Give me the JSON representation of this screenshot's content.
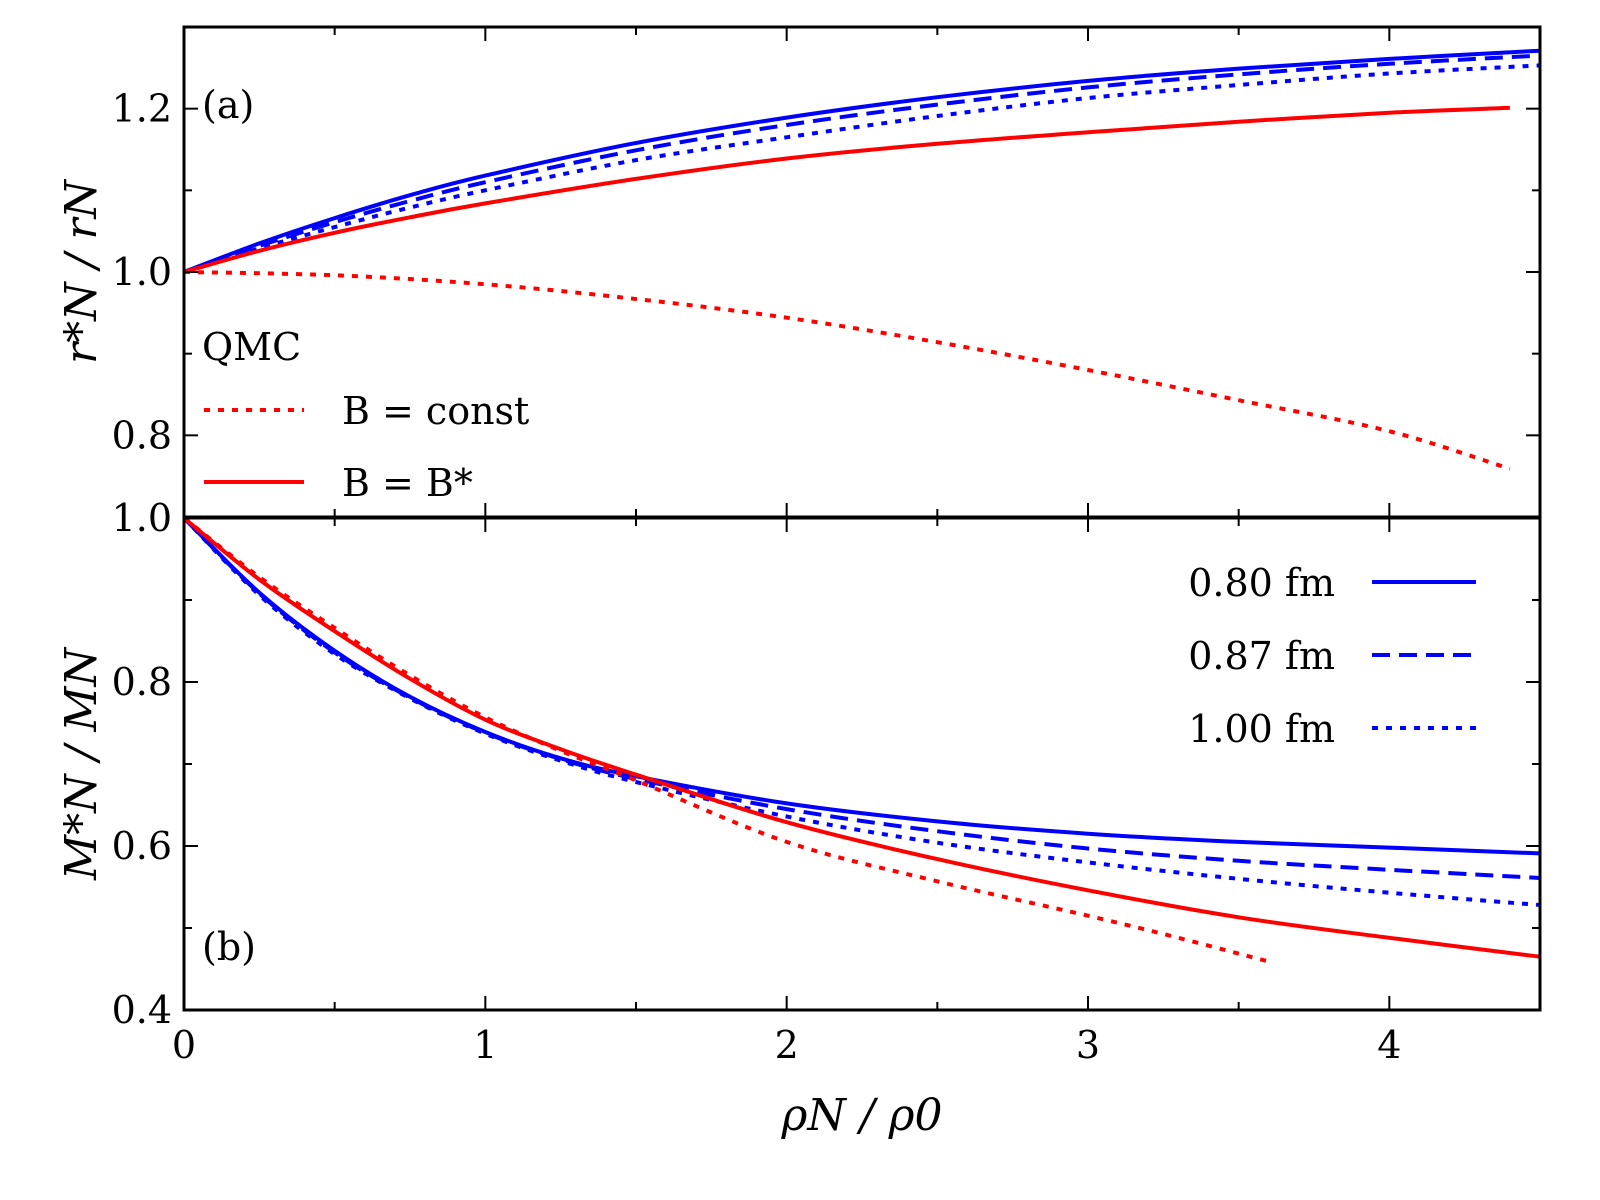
{
  "chart_data": [
    {
      "type": "line",
      "panel_label": "(a)",
      "xlabel": "ρN / ρ0",
      "ylabel": "r*N / rN",
      "xlim": [
        0,
        4.5
      ],
      "ylim": [
        0.7,
        1.3
      ],
      "yticks": [
        0.8,
        1.0,
        1.2
      ],
      "ytick_labels": [
        "0.8",
        "1.0",
        "1.2"
      ],
      "legend_title": "QMC",
      "legend": [
        {
          "label": "B = const",
          "color": "#ff0000",
          "style": "dotted"
        },
        {
          "label": "B = B*",
          "color": "#ff0000",
          "style": "solid"
        }
      ],
      "legend_position": "bottom-left",
      "series": [
        {
          "name": "0.80 fm",
          "color": "#0000ff",
          "style": "solid",
          "x": [
            0,
            0.25,
            0.5,
            0.75,
            1,
            1.5,
            2,
            2.5,
            3,
            3.5,
            4,
            4.5
          ],
          "values": [
            1.0,
            1.035,
            1.066,
            1.094,
            1.118,
            1.158,
            1.189,
            1.214,
            1.234,
            1.249,
            1.261,
            1.271
          ]
        },
        {
          "name": "0.87 fm",
          "color": "#0000ff",
          "style": "dashed",
          "x": [
            0,
            0.25,
            0.5,
            0.75,
            1,
            1.5,
            2,
            2.5,
            3,
            3.5,
            4,
            4.5
          ],
          "values": [
            1.0,
            1.032,
            1.061,
            1.087,
            1.11,
            1.149,
            1.18,
            1.205,
            1.226,
            1.242,
            1.255,
            1.265
          ]
        },
        {
          "name": "1.00 fm",
          "color": "#0000ff",
          "style": "dotted",
          "x": [
            0,
            0.25,
            0.5,
            0.75,
            1,
            1.5,
            2,
            2.5,
            3,
            3.5,
            4,
            4.5
          ],
          "values": [
            1.0,
            1.029,
            1.055,
            1.079,
            1.1,
            1.137,
            1.165,
            1.191,
            1.213,
            1.229,
            1.243,
            1.253
          ]
        },
        {
          "name": "B = B*",
          "color": "#ff0000",
          "style": "solid",
          "x": [
            0,
            0.25,
            0.5,
            0.75,
            1,
            1.5,
            2,
            2.5,
            3,
            3.5,
            4,
            4.4
          ],
          "values": [
            1.0,
            1.026,
            1.048,
            1.067,
            1.084,
            1.114,
            1.139,
            1.157,
            1.171,
            1.184,
            1.195,
            1.201
          ]
        },
        {
          "name": "B = const",
          "color": "#ff0000",
          "style": "dotted",
          "x": [
            0,
            0.5,
            1,
            1.5,
            2,
            2.5,
            3,
            3.5,
            4,
            4.4
          ],
          "values": [
            1.0,
            0.996,
            0.985,
            0.967,
            0.944,
            0.914,
            0.88,
            0.843,
            0.805,
            0.759
          ]
        }
      ]
    },
    {
      "type": "line",
      "panel_label": "(b)",
      "xlabel": "ρN / ρ0",
      "ylabel": "M*N / MN",
      "xlim": [
        0,
        4.5
      ],
      "ylim": [
        0.4,
        1.0
      ],
      "xticks": [
        0,
        1,
        2,
        3,
        4
      ],
      "xtick_labels": [
        "0",
        "1",
        "2",
        "3",
        "4"
      ],
      "yticks": [
        0.4,
        0.6,
        0.8,
        1.0
      ],
      "ytick_labels": [
        "0.4",
        "0.6",
        "0.8",
        "1.0"
      ],
      "legend": [
        {
          "label": "0.80 fm",
          "color": "#0000ff",
          "style": "solid"
        },
        {
          "label": "0.87 fm",
          "color": "#0000ff",
          "style": "dashed"
        },
        {
          "label": "1.00 fm",
          "color": "#0000ff",
          "style": "dotted"
        }
      ],
      "legend_position": "top-right",
      "series": [
        {
          "name": "0.80 fm",
          "color": "#0000ff",
          "style": "solid",
          "x": [
            0,
            0.25,
            0.5,
            0.75,
            1,
            1.25,
            1.5,
            2,
            2.5,
            3,
            3.5,
            4,
            4.5
          ],
          "values": [
            1.0,
            0.909,
            0.838,
            0.782,
            0.739,
            0.707,
            0.685,
            0.652,
            0.63,
            0.615,
            0.605,
            0.598,
            0.591
          ]
        },
        {
          "name": "0.87 fm",
          "color": "#0000ff",
          "style": "dashed",
          "x": [
            0,
            0.25,
            0.5,
            0.75,
            1,
            1.25,
            1.5,
            2,
            2.5,
            3,
            3.5,
            4,
            4.5
          ],
          "values": [
            1.0,
            0.908,
            0.836,
            0.781,
            0.738,
            0.706,
            0.682,
            0.645,
            0.618,
            0.597,
            0.582,
            0.571,
            0.561
          ]
        },
        {
          "name": "1.00 fm",
          "color": "#0000ff",
          "style": "dotted",
          "x": [
            0,
            0.25,
            0.5,
            0.75,
            1,
            1.25,
            1.5,
            2,
            2.5,
            3,
            3.5,
            4,
            4.5
          ],
          "values": [
            1.0,
            0.906,
            0.834,
            0.78,
            0.737,
            0.704,
            0.678,
            0.636,
            0.604,
            0.58,
            0.56,
            0.543,
            0.528
          ]
        },
        {
          "name": "B = B*",
          "color": "#ff0000",
          "style": "solid",
          "x": [
            0,
            0.25,
            0.5,
            0.75,
            1,
            1.25,
            1.5,
            2,
            2.5,
            3,
            3.5,
            4,
            4.5
          ],
          "values": [
            1.0,
            0.925,
            0.862,
            0.804,
            0.754,
            0.718,
            0.687,
            0.629,
            0.584,
            0.546,
            0.513,
            0.488,
            0.465
          ]
        },
        {
          "name": "B = const",
          "color": "#ff0000",
          "style": "dotted",
          "x": [
            0,
            0.25,
            0.5,
            0.75,
            1,
            1.25,
            1.5,
            2,
            2.5,
            3,
            3.3,
            3.6
          ],
          "values": [
            1.0,
            0.928,
            0.866,
            0.808,
            0.757,
            0.716,
            0.68,
            0.605,
            0.557,
            0.515,
            0.488,
            0.459
          ]
        }
      ]
    }
  ]
}
